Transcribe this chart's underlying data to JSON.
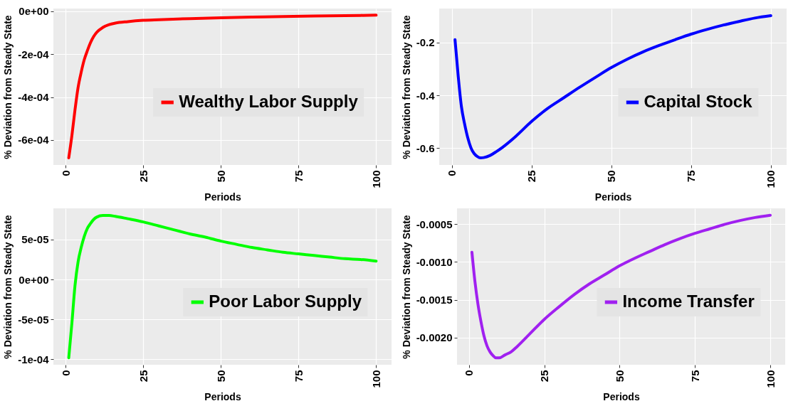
{
  "chart_data": [
    {
      "type": "line",
      "xlabel": "Periods",
      "ylabel": "% Deviation from Steady State",
      "xlim": [
        -3.95,
        104.95
      ],
      "xticks": [
        0,
        25,
        50,
        75,
        100
      ],
      "ylim": [
        -0.000716,
        1.3e-05
      ],
      "yticks": [
        {
          "value": -0.0006,
          "label": "-6e-04"
        },
        {
          "value": -0.0004,
          "label": "-4e-04"
        },
        {
          "value": -0.0002,
          "label": "-2e-04"
        },
        {
          "value": 0,
          "label": "0e+00"
        }
      ],
      "grid": true,
      "legend": "right",
      "x": [
        1,
        2,
        3,
        4,
        5,
        6,
        7,
        8,
        9,
        10,
        12,
        14,
        16,
        20,
        25,
        30,
        40,
        50,
        60,
        70,
        80,
        90,
        100
      ],
      "series": [
        {
          "name": "Wealthy Labor Supply",
          "color": "#ff0000",
          "values": [
            -0.000683,
            -0.00058,
            -0.00046,
            -0.000355,
            -0.000284,
            -0.000225,
            -0.000183,
            -0.000146,
            -0.000118,
            -9.8e-05,
            -7.5e-05,
            -6.2e-05,
            -5.5e-05,
            -4.8e-05,
            -4.2e-05,
            -3.9e-05,
            -3.4e-05,
            -3e-05,
            -2.7e-05,
            -2.4e-05,
            -2.2e-05,
            -2e-05,
            -1.8e-05
          ]
        }
      ]
    },
    {
      "type": "line",
      "xlabel": "Periods",
      "ylabel": "% Deviation from Steady State",
      "xlim": [
        -3.95,
        104.95
      ],
      "xticks": [
        0,
        25,
        50,
        75,
        100
      ],
      "ylim": [
        -0.664,
        -0.071
      ],
      "yticks": [
        -0.6,
        -0.4,
        -0.2
      ],
      "grid": true,
      "legend": "right",
      "x": [
        1,
        2,
        3,
        4,
        5,
        6,
        7,
        8,
        9,
        10,
        12,
        14,
        16,
        20,
        25,
        30,
        35,
        40,
        45,
        50,
        55,
        60,
        65,
        70,
        75,
        80,
        85,
        90,
        95,
        100
      ],
      "series": [
        {
          "name": "Capital Stock",
          "color": "#0000ff",
          "values": [
            -0.189,
            -0.327,
            -0.442,
            -0.508,
            -0.561,
            -0.599,
            -0.621,
            -0.632,
            -0.637,
            -0.636,
            -0.628,
            -0.613,
            -0.596,
            -0.556,
            -0.499,
            -0.45,
            -0.41,
            -0.37,
            -0.332,
            -0.295,
            -0.263,
            -0.235,
            -0.211,
            -0.189,
            -0.168,
            -0.15,
            -0.134,
            -0.12,
            -0.107,
            -0.098
          ]
        }
      ]
    },
    {
      "type": "line",
      "xlabel": "Periods",
      "ylabel": "% Deviation from Steady State",
      "xlim": [
        -3.95,
        104.95
      ],
      "xticks": [
        0,
        25,
        50,
        75,
        100
      ],
      "ylim": [
        -0.0001067,
        8.9e-05
      ],
      "yticks": [
        {
          "value": -0.0001,
          "label": "-1e-04"
        },
        {
          "value": -5e-05,
          "label": "-5e-05"
        },
        {
          "value": 0,
          "label": "0e+00"
        },
        {
          "value": 5e-05,
          "label": "5e-05"
        }
      ],
      "grid": true,
      "legend": "right",
      "x": [
        1,
        2,
        3,
        4,
        5,
        6,
        7,
        8,
        9,
        10,
        12,
        14,
        16,
        20,
        25,
        30,
        35,
        40,
        45,
        50,
        55,
        60,
        65,
        70,
        75,
        80,
        85,
        90,
        95,
        100
      ],
      "series": [
        {
          "name": "Poor Labor Supply",
          "color": "#00ff00",
          "values": [
            -9.8e-05,
            -5.5e-05,
            -8e-06,
            2.2e-05,
            4e-05,
            5.4e-05,
            6.4e-05,
            7e-05,
            7.5e-05,
            7.8e-05,
            8e-05,
            8e-05,
            7.9e-05,
            7.6e-05,
            7.2e-05,
            6.7e-05,
            6.2e-05,
            5.7e-05,
            5.3e-05,
            4.8e-05,
            4.4e-05,
            4e-05,
            3.7e-05,
            3.4e-05,
            3.2e-05,
            3e-05,
            2.8e-05,
            2.6e-05,
            2.5e-05,
            2.3e-05
          ]
        }
      ]
    },
    {
      "type": "line",
      "xlabel": "Periods",
      "ylabel": "% Deviation from Steady State",
      "xlim": [
        -3.95,
        104.95
      ],
      "xticks": [
        0,
        25,
        50,
        75,
        100
      ],
      "ylim": [
        -0.002361,
        -0.000289
      ],
      "yticks": [
        {
          "value": -0.002,
          "label": "-0.0020"
        },
        -0.0015,
        {
          "value": -0.001,
          "label": "-0.0010"
        },
        -0.0005
      ],
      "grid": true,
      "legend": "right",
      "x": [
        1,
        2,
        3,
        4,
        5,
        6,
        7,
        8,
        9,
        10,
        12,
        14,
        16,
        20,
        25,
        30,
        35,
        40,
        45,
        50,
        55,
        60,
        65,
        70,
        75,
        80,
        85,
        90,
        95,
        100
      ],
      "series": [
        {
          "name": "Income Transfer",
          "color": "#a020f0",
          "values": [
            -0.00087,
            -0.00126,
            -0.00156,
            -0.00179,
            -0.00198,
            -0.00211,
            -0.00219,
            -0.00224,
            -0.00227,
            -0.00227,
            -0.00223,
            -0.00219,
            -0.00212,
            -0.00196,
            -0.00176,
            -0.00159,
            -0.00143,
            -0.00129,
            -0.00117,
            -0.00105,
            -0.00095,
            -0.00086,
            -0.00077,
            -0.00069,
            -0.00062,
            -0.00056,
            -0.0005,
            -0.00045,
            -0.00041,
            -0.00038
          ]
        }
      ]
    }
  ]
}
